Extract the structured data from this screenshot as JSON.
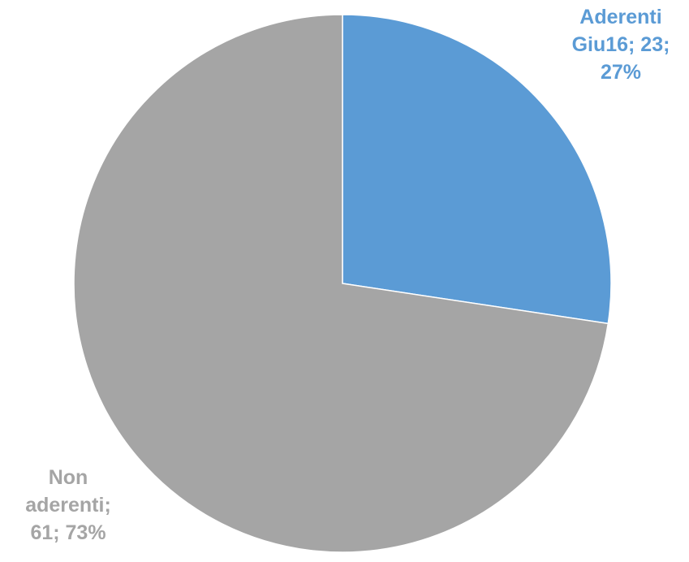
{
  "chart_data": {
    "type": "pie",
    "title": "",
    "slices": [
      {
        "name": "Aderenti Giu16",
        "value": 23,
        "percent": 27,
        "color": "#5B9BD5",
        "label_lines": [
          "Aderenti",
          "Giu16; 23;",
          "27%"
        ]
      },
      {
        "name": "Non aderenti",
        "value": 61,
        "percent": 73,
        "color": "#A5A5A5",
        "label_lines": [
          "Non",
          "aderenti;",
          "61; 73%"
        ]
      }
    ],
    "start_angle": "12 o'clock",
    "direction": "clockwise",
    "legend": "none"
  }
}
